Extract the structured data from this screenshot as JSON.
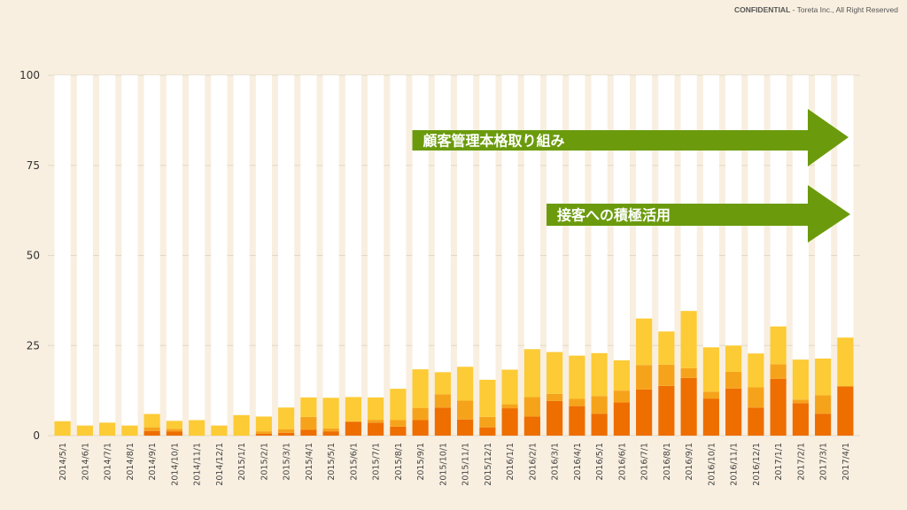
{
  "header": {
    "confidential_label": "CONFIDENTIAL",
    "confidential_rest": " - Toreta Inc., All Right Reserved"
  },
  "colors": {
    "background": "#f8efe0",
    "bar_background": "#ffffff",
    "series_dark": "#ee6e00",
    "series_mid": "#f6a31c",
    "series_light": "#fccb35",
    "arrow": "#6b9b0c",
    "gridline": "#e2d8c8"
  },
  "annotations": [
    {
      "text": "顧客管理本格取り組み",
      "start_category": "2015/9/1"
    },
    {
      "text": "接客への積極活用",
      "start_category": "2016/3/1"
    }
  ],
  "chart_data": {
    "type": "bar",
    "stacked": true,
    "ylim": [
      0,
      100
    ],
    "yticks": [
      0,
      25,
      50,
      75,
      100
    ],
    "grid": true,
    "legend": "none",
    "categories": [
      "2014/5/1",
      "2014/6/1",
      "2014/7/1",
      "2014/8/1",
      "2014/9/1",
      "2014/10/1",
      "2014/11/1",
      "2014/12/1",
      "2015/1/1",
      "2015/2/1",
      "2015/3/1",
      "2015/4/1",
      "2015/5/1",
      "2015/6/1",
      "2015/7/1",
      "2015/8/1",
      "2015/9/1",
      "2015/10/1",
      "2015/11/1",
      "2015/12/1",
      "2016/1/1",
      "2016/2/1",
      "2016/3/1",
      "2016/4/1",
      "2016/5/1",
      "2016/6/1",
      "2016/7/1",
      "2016/8/1",
      "2016/9/1",
      "2016/10/1",
      "2016/11/1",
      "2016/12/1",
      "2017/1/1",
      "2017/2/1",
      "2017/3/1",
      "2017/4/1"
    ],
    "series": [
      {
        "color": "#ee6e00",
        "values": [
          0,
          0,
          0,
          0,
          1.3,
          1.2,
          0,
          0,
          0,
          0.5,
          0.8,
          1.6,
          1.2,
          3.8,
          3.6,
          2.5,
          4.3,
          7.8,
          4.5,
          2.3,
          7.6,
          5.3,
          9.6,
          8.2,
          6.1,
          9.2,
          12.8,
          13.8,
          16.0,
          10.3,
          13.1,
          7.8,
          15.8,
          9.0,
          6.1,
          13.7
        ]
      },
      {
        "color": "#f6a31c",
        "values": [
          0,
          0,
          0,
          0,
          1.0,
          0.7,
          0,
          0,
          0,
          0.7,
          1.0,
          3.6,
          0.8,
          0.2,
          0.8,
          1.8,
          3.4,
          3.7,
          5.2,
          2.9,
          1.1,
          5.4,
          2.0,
          2.0,
          4.9,
          3.3,
          6.8,
          5.9,
          2.7,
          1.9,
          4.6,
          5.6,
          4.0,
          1.0,
          5.1,
          0
        ]
      },
      {
        "color": "#fccb35",
        "values": [
          4.0,
          2.8,
          3.6,
          2.8,
          3.7,
          2.2,
          4.3,
          2.8,
          5.7,
          4.1,
          6.0,
          5.4,
          8.5,
          6.7,
          6.2,
          8.7,
          10.7,
          6.1,
          9.4,
          10.3,
          9.6,
          13.3,
          11.6,
          12.0,
          11.9,
          8.4,
          12.9,
          9.2,
          15.9,
          12.3,
          7.3,
          9.4,
          10.5,
          11.1,
          10.2,
          13.5
        ]
      }
    ]
  }
}
